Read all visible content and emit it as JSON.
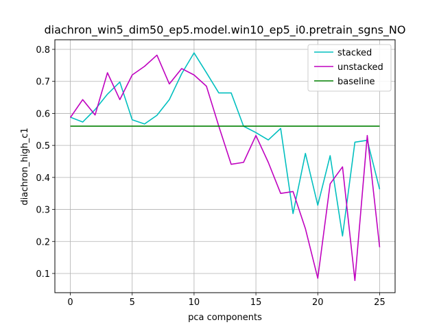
{
  "chart_data": {
    "type": "line",
    "title": "diachron_win5_dim50_ep5.model.win10_ep5_i0.pretrain_sgns_NO",
    "xlabel": "pca components",
    "ylabel": "diachron_high_c1",
    "xlim": [
      -1.25,
      26.25
    ],
    "ylim": [
      0.04,
      0.83
    ],
    "xticks": [
      0,
      5,
      10,
      15,
      20,
      25
    ],
    "yticks": [
      0.1,
      0.2,
      0.3,
      0.4,
      0.5,
      0.6,
      0.7,
      0.8
    ],
    "grid": true,
    "legend_position": "top-right",
    "x": [
      0,
      1,
      2,
      3,
      4,
      5,
      6,
      7,
      8,
      9,
      10,
      11,
      12,
      13,
      14,
      15,
      16,
      17,
      18,
      19,
      20,
      21,
      22,
      23,
      24,
      25
    ],
    "series": [
      {
        "name": "stacked",
        "color": "#00bfbf",
        "values": [
          0.588,
          0.573,
          0.612,
          0.66,
          0.698,
          0.58,
          0.567,
          0.594,
          0.643,
          0.724,
          0.789,
          0.727,
          0.664,
          0.664,
          0.56,
          0.54,
          0.517,
          0.553,
          0.287,
          0.475,
          0.313,
          0.468,
          0.217,
          0.51,
          0.516,
          0.363
        ]
      },
      {
        "name": "unstacked",
        "color": "#bf00bf",
        "values": [
          0.587,
          0.643,
          0.595,
          0.727,
          0.643,
          0.72,
          0.747,
          0.782,
          0.692,
          0.74,
          0.72,
          0.685,
          0.56,
          0.441,
          0.447,
          0.531,
          0.447,
          0.35,
          0.356,
          0.24,
          0.085,
          0.38,
          0.433,
          0.078,
          0.531,
          0.182
        ]
      },
      {
        "name": "baseline",
        "color": "#008000",
        "values": [
          0.56,
          0.56,
          0.56,
          0.56,
          0.56,
          0.56,
          0.56,
          0.56,
          0.56,
          0.56,
          0.56,
          0.56,
          0.56,
          0.56,
          0.56,
          0.56,
          0.56,
          0.56,
          0.56,
          0.56,
          0.56,
          0.56,
          0.56,
          0.56,
          0.56,
          0.56
        ]
      }
    ]
  }
}
